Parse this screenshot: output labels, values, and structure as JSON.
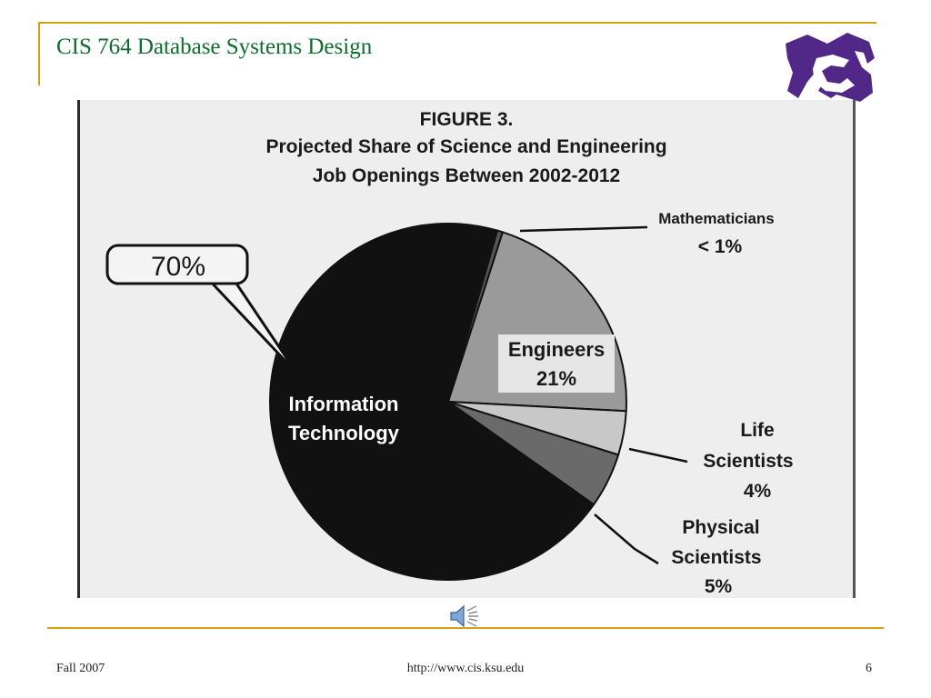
{
  "slide": {
    "title": "CIS 764 Database Systems Design",
    "footer_left": "Fall 2007",
    "footer_center": "http://www.cis.ksu.edu",
    "page_number": "6"
  },
  "logo": {
    "icon": "wildcat-logo-icon",
    "color": "#512888"
  },
  "speaker": {
    "icon": "speaker-icon"
  },
  "colors": {
    "accent_rule": "#d4a017",
    "title_green": "#0f6e2e"
  },
  "chart_data": {
    "type": "pie",
    "title_lines": [
      "FIGURE 3.",
      "Projected Share of Science and Engineering",
      "Job Openings Between 2002-2012"
    ],
    "callout": "70%",
    "slices": [
      {
        "label_lines": [
          "Information",
          "Technology"
        ],
        "value": 70,
        "fill": "#111111"
      },
      {
        "label_lines": [
          "Mathematicians",
          "< 1%"
        ],
        "value": 0.5,
        "fill": "#555555"
      },
      {
        "label_lines": [
          "Engineers",
          "21%"
        ],
        "value": 21,
        "fill": "#9a9a9a"
      },
      {
        "label_lines": [
          "Life",
          "Scientists",
          "4%"
        ],
        "value": 4,
        "fill": "#c8c8c8"
      },
      {
        "label_lines": [
          "Physical",
          "Scientists",
          "5%"
        ],
        "value": 5,
        "fill": "#6a6a6a"
      }
    ]
  }
}
